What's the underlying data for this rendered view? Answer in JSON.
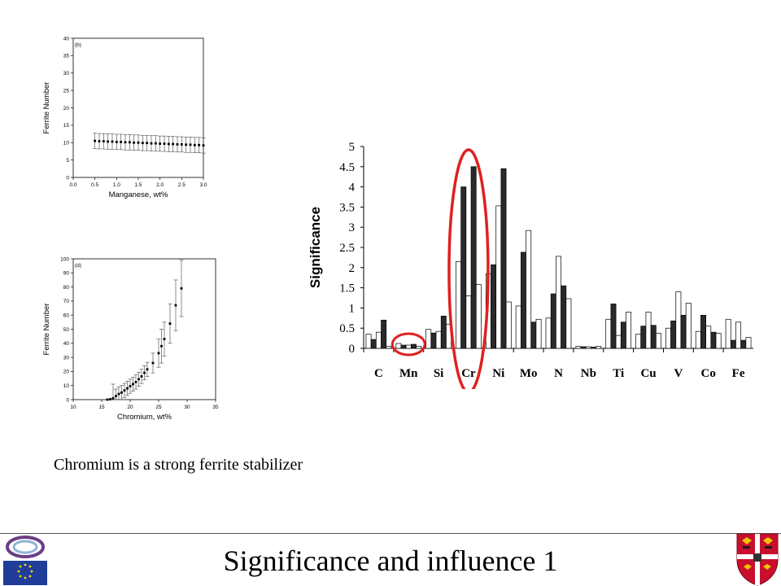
{
  "caption": "Chromium is a strong ferrite stabilizer",
  "footer": {
    "title": "Significance and influence 1"
  },
  "colors": {
    "accent_ellipse": "#e02020",
    "dark_bar": "#2a2a2a",
    "light_bar": "#ffffff"
  },
  "chart_data": [
    {
      "type": "scatter",
      "panel_label": "(b)",
      "xlabel": "Manganese, wt%",
      "ylabel": "Ferrite Number",
      "xlim": [
        0.0,
        3.0
      ],
      "ylim": [
        0,
        40
      ],
      "xticks": [
        "0.0",
        "0.5",
        "1.0",
        "1.5",
        "2.0",
        "2.5",
        "3.0"
      ],
      "yticks": [
        "0",
        "5",
        "10",
        "15",
        "20",
        "25",
        "30",
        "35",
        "40"
      ],
      "x": [
        0.5,
        0.6,
        0.7,
        0.8,
        0.9,
        1.0,
        1.1,
        1.2,
        1.3,
        1.4,
        1.5,
        1.6,
        1.7,
        1.8,
        1.9,
        2.0,
        2.1,
        2.2,
        2.3,
        2.4,
        2.5,
        2.6,
        2.7,
        2.8,
        2.9,
        3.0
      ],
      "y": [
        10.5,
        10.4,
        10.4,
        10.3,
        10.3,
        10.2,
        10.2,
        10.1,
        10.1,
        10.0,
        10.0,
        9.9,
        9.9,
        9.8,
        9.8,
        9.7,
        9.7,
        9.6,
        9.6,
        9.5,
        9.5,
        9.4,
        9.4,
        9.3,
        9.3,
        9.2
      ],
      "err": [
        2.2,
        2.2,
        2.2,
        2.2,
        2.2,
        2.2,
        2.2,
        2.2,
        2.2,
        2.2,
        2.2,
        2.2,
        2.2,
        2.2,
        2.2,
        2.2,
        2.2,
        2.2,
        2.2,
        2.2,
        2.2,
        2.2,
        2.2,
        2.2,
        2.2,
        2.2
      ]
    },
    {
      "type": "scatter",
      "panel_label": "(d)",
      "xlabel": "Chromium, wt%",
      "ylabel": "Ferrite Number",
      "xlim": [
        10,
        35
      ],
      "ylim": [
        0,
        100
      ],
      "xticks": [
        "10",
        "15",
        "20",
        "25",
        "30",
        "35"
      ],
      "yticks": [
        "0",
        "10",
        "20",
        "30",
        "40",
        "50",
        "60",
        "70",
        "80",
        "90",
        "100"
      ],
      "x": [
        16.0,
        16.5,
        17.0,
        17.5,
        18.0,
        18.5,
        19.0,
        19.5,
        20.0,
        20.5,
        21.0,
        21.5,
        22.0,
        22.5,
        23.0,
        24.0,
        25.0,
        25.5,
        26.0,
        27.0,
        28.0,
        29.0
      ],
      "y": [
        0.0,
        0.3,
        1.0,
        2.5,
        4.0,
        5.0,
        6.5,
        8.0,
        9.5,
        11.0,
        12.5,
        14.5,
        16.5,
        19.0,
        21.5,
        26.0,
        33.0,
        38.0,
        43.0,
        54.0,
        67.0,
        79.0
      ],
      "err": [
        0,
        0,
        10,
        5,
        5,
        5,
        5,
        5,
        5,
        5,
        5,
        5,
        5,
        5,
        5,
        7,
        10,
        12,
        12,
        14,
        18,
        20
      ]
    },
    {
      "type": "bar",
      "ylabel": "Significance",
      "xlabel": "",
      "ylim": [
        0,
        5
      ],
      "yticks": [
        "0",
        "0.5",
        "1",
        "1.5",
        "2",
        "2.5",
        "3",
        "3.5",
        "4",
        "4.5",
        "5"
      ],
      "categories": [
        "C",
        "Mn",
        "Si",
        "Cr",
        "Ni",
        "Mo",
        "N",
        "Nb",
        "Ti",
        "Cu",
        "V",
        "Co",
        "Fe"
      ],
      "series": [
        {
          "values": [
            0.35,
            0.12,
            0.47,
            2.15,
            1.85,
            1.05,
            0.75,
            0.05,
            0.72,
            0.35,
            0.5,
            0.42,
            0.72
          ]
        },
        {
          "values": [
            0.22,
            0.08,
            0.38,
            4.0,
            2.07,
            2.38,
            1.35,
            0.04,
            1.1,
            0.55,
            0.68,
            0.82,
            0.2
          ]
        },
        {
          "values": [
            0.4,
            0.08,
            0.42,
            1.3,
            3.53,
            2.92,
            2.28,
            0.04,
            0.32,
            0.9,
            1.4,
            0.55,
            0.65
          ]
        },
        {
          "values": [
            0.7,
            0.1,
            0.8,
            4.5,
            4.45,
            0.65,
            1.55,
            0.03,
            0.65,
            0.57,
            0.82,
            0.4,
            0.2
          ]
        },
        {
          "values": [
            0.05,
            0.05,
            0.6,
            1.58,
            1.15,
            0.72,
            1.23,
            0.05,
            0.9,
            0.37,
            1.12,
            0.37,
            0.27
          ]
        }
      ]
    }
  ]
}
